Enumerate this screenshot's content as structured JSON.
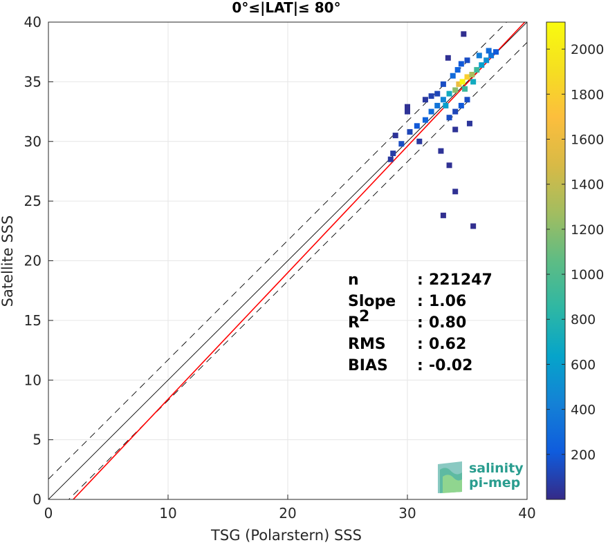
{
  "chart_data": {
    "type": "scatter",
    "title": "0°≤|LAT|≤ 80°",
    "xlabel": "TSG (Polarstern) SSS",
    "ylabel": "Satellite SSS",
    "xlim": [
      0,
      40
    ],
    "ylim": [
      0,
      40
    ],
    "xticks": [
      "0",
      "10",
      "20",
      "30",
      "40"
    ],
    "yticks": [
      "0",
      "5",
      "10",
      "15",
      "20",
      "25",
      "30",
      "35",
      "40"
    ],
    "grid": true,
    "colorbar": {
      "colormap": "parula",
      "range": [
        0,
        2120
      ],
      "ticks": [
        "200",
        "400",
        "600",
        "800",
        "1000",
        "1200",
        "1400",
        "1600",
        "1800",
        "2000"
      ]
    },
    "reference_lines": [
      {
        "name": "1:1",
        "slope": 1,
        "intercept": 0,
        "color": "#000000",
        "style": "solid"
      },
      {
        "name": "+2 sigma",
        "slope": 1,
        "intercept": 1.7,
        "color": "#000000",
        "style": "dashed"
      },
      {
        "name": "-2 sigma",
        "slope": 1,
        "intercept": -1.7,
        "color": "#000000",
        "style": "dashed"
      },
      {
        "name": "regression",
        "slope": 1.06,
        "intercept": -2.2,
        "color": "#ff0000",
        "style": "solid"
      }
    ],
    "density_points": [
      {
        "x": 28.8,
        "y": 29.0,
        "v": 80
      },
      {
        "x": 29.5,
        "y": 29.8,
        "v": 150
      },
      {
        "x": 30.2,
        "y": 30.8,
        "v": 120
      },
      {
        "x": 30.8,
        "y": 31.3,
        "v": 200
      },
      {
        "x": 31.5,
        "y": 31.8,
        "v": 250
      },
      {
        "x": 32.0,
        "y": 32.5,
        "v": 300
      },
      {
        "x": 32.5,
        "y": 33.0,
        "v": 350
      },
      {
        "x": 33.0,
        "y": 33.5,
        "v": 450
      },
      {
        "x": 33.5,
        "y": 34.0,
        "v": 700
      },
      {
        "x": 34.0,
        "y": 34.3,
        "v": 1200
      },
      {
        "x": 34.3,
        "y": 34.8,
        "v": 1600
      },
      {
        "x": 34.6,
        "y": 35.0,
        "v": 2100
      },
      {
        "x": 35.0,
        "y": 35.4,
        "v": 1800
      },
      {
        "x": 35.4,
        "y": 35.6,
        "v": 1300
      },
      {
        "x": 35.8,
        "y": 36.0,
        "v": 900
      },
      {
        "x": 36.2,
        "y": 36.4,
        "v": 600
      },
      {
        "x": 36.6,
        "y": 36.8,
        "v": 500
      },
      {
        "x": 37.0,
        "y": 37.2,
        "v": 350
      },
      {
        "x": 37.4,
        "y": 37.5,
        "v": 200
      },
      {
        "x": 33.8,
        "y": 35.5,
        "v": 300
      },
      {
        "x": 34.2,
        "y": 36.0,
        "v": 250
      },
      {
        "x": 34.5,
        "y": 36.5,
        "v": 200
      },
      {
        "x": 35.0,
        "y": 36.8,
        "v": 150
      },
      {
        "x": 33.0,
        "y": 34.8,
        "v": 150
      },
      {
        "x": 32.5,
        "y": 34.0,
        "v": 120
      },
      {
        "x": 32.0,
        "y": 33.8,
        "v": 100
      },
      {
        "x": 34.5,
        "y": 33.0,
        "v": 200
      },
      {
        "x": 35.0,
        "y": 33.5,
        "v": 150
      },
      {
        "x": 33.5,
        "y": 32.0,
        "v": 150
      },
      {
        "x": 34.0,
        "y": 32.5,
        "v": 120
      },
      {
        "x": 31.5,
        "y": 33.5,
        "v": 60
      },
      {
        "x": 30.0,
        "y": 32.5,
        "v": 40
      },
      {
        "x": 29.0,
        "y": 30.5,
        "v": 40
      },
      {
        "x": 35.2,
        "y": 31.5,
        "v": 50
      },
      {
        "x": 34.0,
        "y": 31.0,
        "v": 40
      },
      {
        "x": 32.8,
        "y": 29.2,
        "v": 40
      },
      {
        "x": 33.5,
        "y": 28.0,
        "v": 30
      },
      {
        "x": 34.0,
        "y": 25.8,
        "v": 30
      },
      {
        "x": 33.0,
        "y": 23.8,
        "v": 20
      },
      {
        "x": 35.5,
        "y": 22.9,
        "v": 20
      },
      {
        "x": 34.7,
        "y": 39.0,
        "v": 20
      },
      {
        "x": 33.4,
        "y": 37.0,
        "v": 30
      },
      {
        "x": 30.0,
        "y": 32.9,
        "v": 30
      },
      {
        "x": 28.6,
        "y": 28.5,
        "v": 60
      },
      {
        "x": 31.0,
        "y": 30.0,
        "v": 60
      },
      {
        "x": 36.0,
        "y": 37.2,
        "v": 400
      },
      {
        "x": 36.8,
        "y": 37.6,
        "v": 300
      },
      {
        "x": 33.2,
        "y": 33.0,
        "v": 600
      },
      {
        "x": 34.8,
        "y": 34.4,
        "v": 900
      },
      {
        "x": 35.5,
        "y": 35.0,
        "v": 700
      }
    ],
    "stats": [
      {
        "label": "n",
        "sep": ":",
        "value": "221247"
      },
      {
        "label": "Slope",
        "sep": ":",
        "value": "1.06"
      },
      {
        "label": "R",
        "sup": "2",
        "sep": ":",
        "value": "0.80"
      },
      {
        "label": "RMS",
        "sep": ":",
        "value": "0.62"
      },
      {
        "label": "BIAS",
        "sep": ":",
        "value": "-0.02"
      }
    ]
  },
  "logo": {
    "line1": "salinity",
    "line2": "pi-mep",
    "color": "#2a9d8f"
  }
}
